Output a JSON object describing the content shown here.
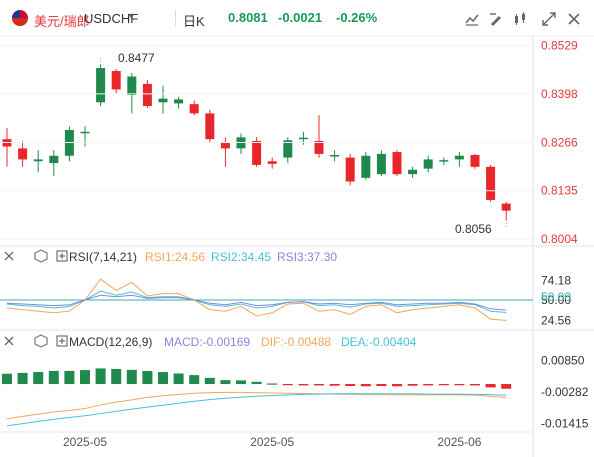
{
  "header": {
    "symbol": "美元/瑞郎",
    "ticker": "USDCHF",
    "timeframe": "日K",
    "last_price": "0.8081",
    "change": "-0.0021",
    "change_pct": "-0.26%"
  },
  "colors": {
    "up": "#1f8a4c",
    "down": "#e8262b",
    "rsi1": "#f2a65a",
    "rsi2": "#47c1d6",
    "rsi3": "#8a84d8",
    "dif": "#f2a65a",
    "dea": "#47c1d6",
    "level": "#2fb3b3"
  },
  "chart_data": [
    {
      "type": "candlestick",
      "price_axis_ticks": [
        "0.8529",
        "0.8398",
        "0.8266",
        "0.8135",
        "0.8004"
      ],
      "ylim": [
        0.7985,
        0.8555
      ],
      "annotations": {
        "high": "0.8477",
        "low": "0.8056"
      },
      "x_tick_labels": [
        "2025-05",
        "2025-05",
        "2025-06"
      ],
      "candles": [
        {
          "open": 0.8275,
          "high": 0.8305,
          "low": 0.82,
          "close": 0.8255
        },
        {
          "open": 0.825,
          "high": 0.827,
          "low": 0.82,
          "close": 0.822
        },
        {
          "open": 0.8215,
          "high": 0.8245,
          "low": 0.8185,
          "close": 0.822
        },
        {
          "open": 0.821,
          "high": 0.8245,
          "low": 0.8175,
          "close": 0.823
        },
        {
          "open": 0.823,
          "high": 0.831,
          "low": 0.8215,
          "close": 0.83
        },
        {
          "open": 0.8295,
          "high": 0.831,
          "low": 0.8255,
          "close": 0.8295
        },
        {
          "open": 0.8375,
          "high": 0.8477,
          "low": 0.8365,
          "close": 0.8468
        },
        {
          "open": 0.846,
          "high": 0.8465,
          "low": 0.84,
          "close": 0.841
        },
        {
          "open": 0.8395,
          "high": 0.8455,
          "low": 0.8345,
          "close": 0.8445
        },
        {
          "open": 0.8425,
          "high": 0.8435,
          "low": 0.836,
          "close": 0.8365
        },
        {
          "open": 0.8375,
          "high": 0.842,
          "low": 0.8345,
          "close": 0.8385
        },
        {
          "open": 0.8372,
          "high": 0.839,
          "low": 0.8358,
          "close": 0.8383
        },
        {
          "open": 0.837,
          "high": 0.838,
          "low": 0.834,
          "close": 0.8345
        },
        {
          "open": 0.8345,
          "high": 0.8355,
          "low": 0.8265,
          "close": 0.8275
        },
        {
          "open": 0.8265,
          "high": 0.828,
          "low": 0.82,
          "close": 0.825
        },
        {
          "open": 0.825,
          "high": 0.829,
          "low": 0.8235,
          "close": 0.828
        },
        {
          "open": 0.827,
          "high": 0.828,
          "low": 0.82,
          "close": 0.8205
        },
        {
          "open": 0.8215,
          "high": 0.8225,
          "low": 0.8195,
          "close": 0.8208
        },
        {
          "open": 0.8225,
          "high": 0.828,
          "low": 0.821,
          "close": 0.8272
        },
        {
          "open": 0.8279,
          "high": 0.8295,
          "low": 0.826,
          "close": 0.8279
        },
        {
          "open": 0.827,
          "high": 0.834,
          "low": 0.8225,
          "close": 0.8235
        },
        {
          "open": 0.823,
          "high": 0.8245,
          "low": 0.8215,
          "close": 0.8232
        },
        {
          "open": 0.8225,
          "high": 0.8235,
          "low": 0.815,
          "close": 0.816
        },
        {
          "open": 0.817,
          "high": 0.824,
          "low": 0.8165,
          "close": 0.823
        },
        {
          "open": 0.818,
          "high": 0.8245,
          "low": 0.8175,
          "close": 0.8235
        },
        {
          "open": 0.824,
          "high": 0.8245,
          "low": 0.8175,
          "close": 0.818
        },
        {
          "open": 0.818,
          "high": 0.82,
          "low": 0.817,
          "close": 0.8192
        },
        {
          "open": 0.8195,
          "high": 0.823,
          "low": 0.8185,
          "close": 0.822
        },
        {
          "open": 0.8215,
          "high": 0.8225,
          "low": 0.8205,
          "close": 0.8218
        },
        {
          "open": 0.822,
          "high": 0.824,
          "low": 0.82,
          "close": 0.823
        },
        {
          "open": 0.8232,
          "high": 0.8235,
          "low": 0.8195,
          "close": 0.82
        },
        {
          "open": 0.82,
          "high": 0.8205,
          "low": 0.8105,
          "close": 0.811
        },
        {
          "open": 0.81,
          "high": 0.8105,
          "low": 0.8056,
          "close": 0.8081
        }
      ]
    },
    {
      "type": "line",
      "title": "RSI(7,14,21)",
      "ticks": [
        "74.18",
        "50.00",
        "24.56"
      ],
      "level_label": "50.00",
      "ylim": [
        15,
        90
      ],
      "series": [
        {
          "name": "RSI1",
          "legend": "RSI1:24.56",
          "values": [
            40,
            38,
            36,
            34,
            36,
            50,
            76,
            62,
            72,
            55,
            58,
            58,
            50,
            38,
            36,
            42,
            30,
            34,
            45,
            46,
            36,
            38,
            32,
            42,
            44,
            34,
            38,
            40,
            42,
            44,
            40,
            26,
            24.56
          ]
        },
        {
          "name": "RSI2",
          "legend": "RSI2:34.45",
          "values": [
            45,
            43,
            42,
            40,
            42,
            50,
            61,
            56,
            60,
            53,
            54,
            54,
            50,
            44,
            42,
            45,
            40,
            42,
            47,
            48,
            43,
            44,
            41,
            45,
            46,
            42,
            43,
            44,
            45,
            46,
            44,
            36,
            34.45
          ]
        },
        {
          "name": "RSI3",
          "legend": "RSI3:37.30",
          "values": [
            46,
            45,
            44,
            43,
            44,
            50,
            56,
            54,
            56,
            52,
            53,
            53,
            50,
            46,
            44,
            47,
            43,
            44,
            47,
            48,
            45,
            46,
            44,
            46,
            47,
            44,
            45,
            46,
            46,
            47,
            45,
            39,
            37.3
          ]
        }
      ]
    },
    {
      "type": "bar",
      "title": "MACD(12,26,9)",
      "ticks": [
        "0.00850",
        "-0.00282",
        "-0.01415"
      ],
      "ylim": [
        -0.0165,
        0.0115
      ],
      "histogram": {
        "name": "MACD",
        "legend": "MACD:-0.00169",
        "values": [
          0.0037,
          0.004,
          0.0043,
          0.0047,
          0.0047,
          0.005,
          0.0056,
          0.0054,
          0.0051,
          0.0047,
          0.0043,
          0.0038,
          0.0032,
          0.0022,
          0.0014,
          0.0013,
          0.0008,
          0.0002,
          -0.0003,
          -0.0005,
          -0.0005,
          -0.0006,
          -0.0007,
          -0.0008,
          -0.0007,
          -0.0008,
          -0.0006,
          -0.0005,
          -0.0004,
          -0.0004,
          -0.0005,
          -0.0012,
          -0.00169
        ]
      },
      "series": [
        {
          "name": "DIF",
          "legend": "DIF:-0.00488",
          "values": [
            -0.0125,
            -0.0116,
            -0.0108,
            -0.01,
            -0.0095,
            -0.0088,
            -0.0075,
            -0.0065,
            -0.0057,
            -0.0048,
            -0.0042,
            -0.0037,
            -0.0033,
            -0.0031,
            -0.003,
            -0.003,
            -0.0031,
            -0.0032,
            -0.0033,
            -0.0034,
            -0.0035,
            -0.0036,
            -0.0037,
            -0.0038,
            -0.0038,
            -0.0039,
            -0.0039,
            -0.0039,
            -0.0039,
            -0.0039,
            -0.004,
            -0.0044,
            -0.00488
          ]
        },
        {
          "name": "DEA",
          "legend": "DEA:-0.00404",
          "values": [
            -0.015,
            -0.0142,
            -0.0134,
            -0.0127,
            -0.012,
            -0.0114,
            -0.0106,
            -0.0098,
            -0.009,
            -0.0083,
            -0.0076,
            -0.0069,
            -0.0062,
            -0.0056,
            -0.0051,
            -0.0047,
            -0.0044,
            -0.0041,
            -0.0039,
            -0.0037,
            -0.0036,
            -0.0035,
            -0.0035,
            -0.0035,
            -0.0035,
            -0.0035,
            -0.0035,
            -0.0036,
            -0.0036,
            -0.0036,
            -0.0037,
            -0.0038,
            -0.00404
          ]
        }
      ]
    }
  ]
}
